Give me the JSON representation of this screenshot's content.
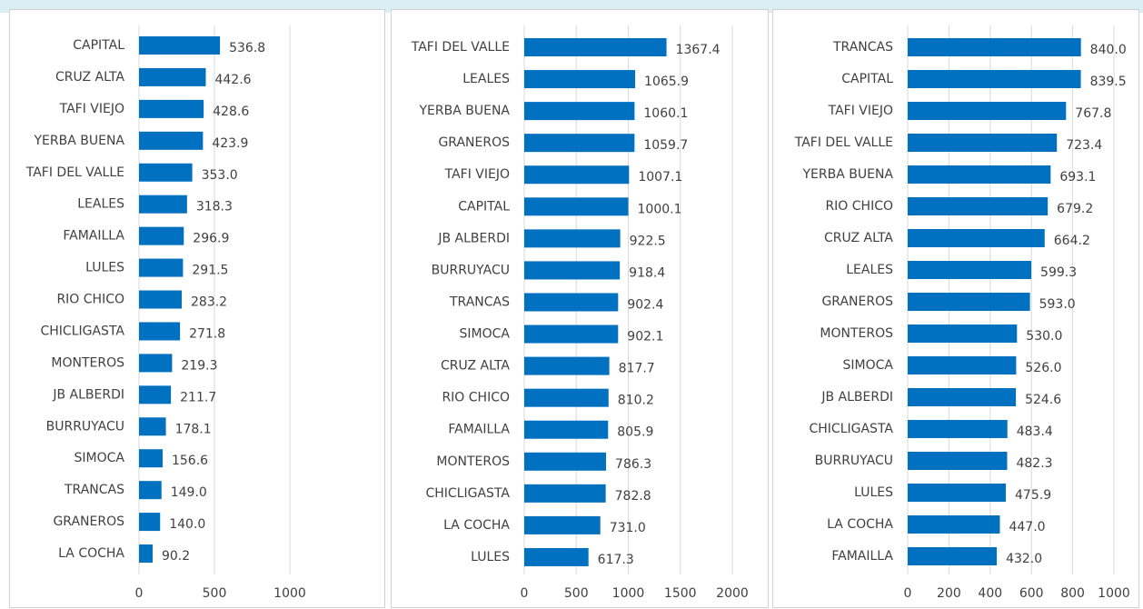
{
  "chart_data": [
    {
      "type": "bar",
      "orientation": "horizontal",
      "color": "#0070c0",
      "grid": true,
      "categories": [
        "CAPITAL",
        "CRUZ ALTA",
        "TAFI VIEJO",
        "YERBA BUENA",
        "TAFI DEL VALLE",
        "LEALES",
        "FAMAILLA",
        "LULES",
        "RIO CHICO",
        "CHICLIGASTA",
        "MONTEROS",
        "JB ALBERDI",
        "BURRUYACU",
        "SIMOCA",
        "TRANCAS",
        "GRANEROS",
        "LA COCHA"
      ],
      "values": [
        536.8,
        442.6,
        428.6,
        423.9,
        353.0,
        318.3,
        296.9,
        291.5,
        283.2,
        271.8,
        219.3,
        211.7,
        178.1,
        156.6,
        149.0,
        140.0,
        90.2
      ],
      "value_labels": [
        "536.8",
        "442.6",
        "428.6",
        "423.9",
        "353.0",
        "318.3",
        "296.9",
        "291.5",
        "283.2",
        "271.8",
        "219.3",
        "211.7",
        "178.1",
        "156.6",
        "149.0",
        "140.0",
        "90.2"
      ],
      "xlim": [
        0,
        1000
      ],
      "xticks": [
        0,
        500,
        1000
      ]
    },
    {
      "type": "bar",
      "orientation": "horizontal",
      "color": "#0070c0",
      "grid": true,
      "categories": [
        "TAFI DEL VALLE",
        "LEALES",
        "YERBA BUENA",
        "GRANEROS",
        "TAFI VIEJO",
        "CAPITAL",
        "JB ALBERDI",
        "BURRUYACU",
        "TRANCAS",
        "SIMOCA",
        "CRUZ ALTA",
        "RIO CHICO",
        "FAMAILLA",
        "MONTEROS",
        "CHICLIGASTA",
        "LA COCHA",
        "LULES"
      ],
      "values": [
        1367.4,
        1065.9,
        1060.1,
        1059.7,
        1007.1,
        1000.1,
        922.5,
        918.4,
        902.4,
        902.1,
        817.7,
        810.2,
        805.9,
        786.3,
        782.8,
        731.0,
        617.3
      ],
      "value_labels": [
        "1367.4",
        "1065.9",
        "1060.1",
        "1059.7",
        "1007.1",
        "1000.1",
        "922.5",
        "918.4",
        "902.4",
        "902.1",
        "817.7",
        "810.2",
        "805.9",
        "786.3",
        "782.8",
        "731.0",
        "617.3"
      ],
      "xlim": [
        0,
        2000
      ],
      "xticks": [
        0,
        500,
        1000,
        1500,
        2000
      ]
    },
    {
      "type": "bar",
      "orientation": "horizontal",
      "color": "#0070c0",
      "grid": true,
      "categories": [
        "TRANCAS",
        "CAPITAL",
        "TAFI VIEJO",
        "TAFI DEL VALLE",
        "YERBA BUENA",
        "RIO CHICO",
        "CRUZ ALTA",
        "LEALES",
        "GRANEROS",
        "MONTEROS",
        "SIMOCA",
        "JB ALBERDI",
        "CHICLIGASTA",
        "BURRUYACU",
        "LULES",
        "LA COCHA",
        "FAMAILLA"
      ],
      "values": [
        840.0,
        839.5,
        767.8,
        723.4,
        693.1,
        679.2,
        664.2,
        599.3,
        593.0,
        530.0,
        526.0,
        524.6,
        483.4,
        482.3,
        475.9,
        447.0,
        432.0
      ],
      "value_labels": [
        "840.0",
        "839.5",
        "767.8",
        "723.4",
        "693.1",
        "679.2",
        "664.2",
        "599.3",
        "593.0",
        "530.0",
        "526.0",
        "524.6",
        "483.4",
        "482.3",
        "475.9",
        "447.0",
        "432.0"
      ],
      "xlim": [
        0,
        1000
      ],
      "xticks": [
        0,
        200,
        400,
        600,
        800,
        1000
      ]
    }
  ]
}
